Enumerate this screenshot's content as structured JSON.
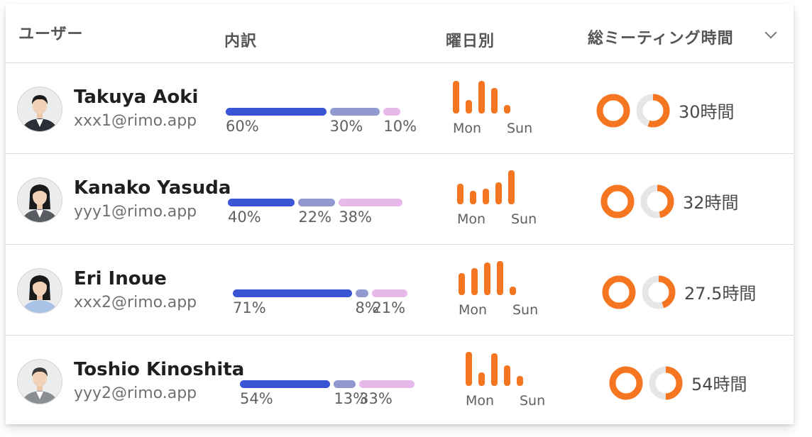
{
  "header": {
    "user": "ユーザー",
    "breakdown": "内訳",
    "day_of_week": "曜日別",
    "total_meeting_time": "総ミーティング時間"
  },
  "colors": {
    "seg1": "#3a54d6",
    "seg2": "#8f99cf",
    "seg3": "#e7b8ea",
    "orange": "#f57520",
    "ring_track": "#e6e6e6"
  },
  "day_labels": {
    "start": "Mon",
    "end": "Sun"
  },
  "users": [
    {
      "name": "Takuya Aoki",
      "email": "xxx1@rimo.app",
      "avatar": "man-suit-avatar",
      "breakdown": [
        {
          "label": "60%",
          "value": 60
        },
        {
          "label": "30%",
          "value": 30
        },
        {
          "label": "10%",
          "value": 10
        }
      ],
      "day_levels": [
        0.95,
        0.4,
        0.95,
        0.75,
        0.25
      ],
      "ring_fraction": 0.55,
      "total": "30時間"
    },
    {
      "name": "Kanako Yasuda",
      "email": "yyy1@rimo.app",
      "avatar": "woman-suit-avatar",
      "breakdown": [
        {
          "label": "40%",
          "value": 40
        },
        {
          "label": "22%",
          "value": 22
        },
        {
          "label": "38%",
          "value": 38
        }
      ],
      "day_levels": [
        0.6,
        0.4,
        0.45,
        0.65,
        1.0
      ],
      "ring_fraction": 0.47,
      "total": "32時間"
    },
    {
      "name": "Eri Inoue",
      "email": "xxx2@rimo.app",
      "avatar": "woman-casual-avatar",
      "breakdown": [
        {
          "label": "71%",
          "value": 71
        },
        {
          "label": "8%",
          "value": 8
        },
        {
          "label": "21%",
          "value": 21
        }
      ],
      "day_levels": [
        0.65,
        0.8,
        0.95,
        1.0,
        0.25
      ],
      "ring_fraction": 0.45,
      "total": "27.5時間"
    },
    {
      "name": "Toshio Kinoshita",
      "email": "yyy2@rimo.app",
      "avatar": "man-jacket-avatar",
      "breakdown": [
        {
          "label": "54%",
          "value": 54
        },
        {
          "label": "13%",
          "value": 13
        },
        {
          "label": "33%",
          "value": 33
        }
      ],
      "day_levels": [
        1.0,
        0.4,
        0.95,
        0.6,
        0.3
      ],
      "ring_fraction": 0.5,
      "total": "54時間"
    }
  ]
}
